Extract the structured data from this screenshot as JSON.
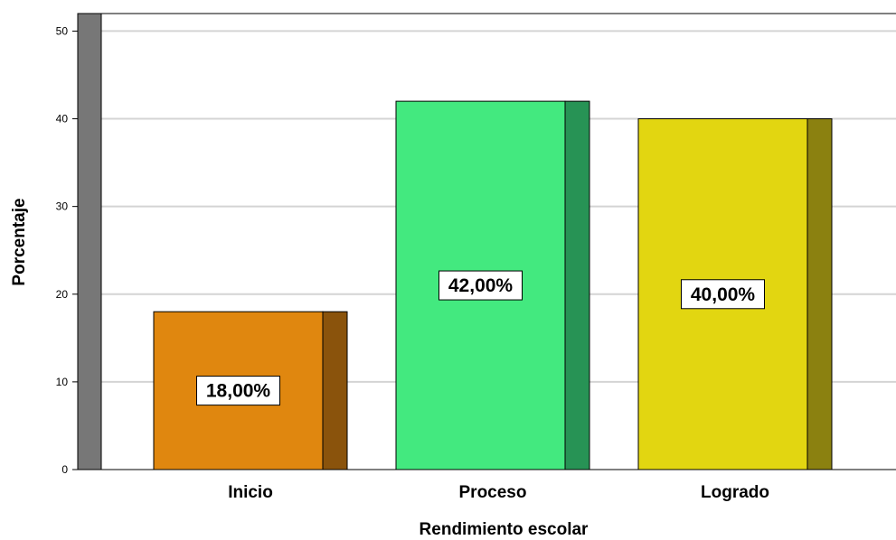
{
  "chart_data": {
    "type": "bar",
    "title": "",
    "xlabel": "Rendimiento escolar",
    "ylabel": "Porcentaje",
    "ylim": [
      0,
      52
    ],
    "yticks": [
      0,
      10,
      20,
      30,
      40,
      50
    ],
    "grid": true,
    "legend": "none",
    "style": "3d",
    "categories": [
      "Inicio",
      "Proceso",
      "Logrado"
    ],
    "values": [
      18.0,
      42.0,
      40.0
    ],
    "data_labels": [
      "18,00%",
      "42,00%",
      "40,00%"
    ],
    "colors": [
      "#e0870f",
      "#43e97f",
      "#e2d611"
    ],
    "side_colors": [
      "#8a530c",
      "#279355",
      "#8b8110"
    ],
    "wall_color": "#777777"
  }
}
